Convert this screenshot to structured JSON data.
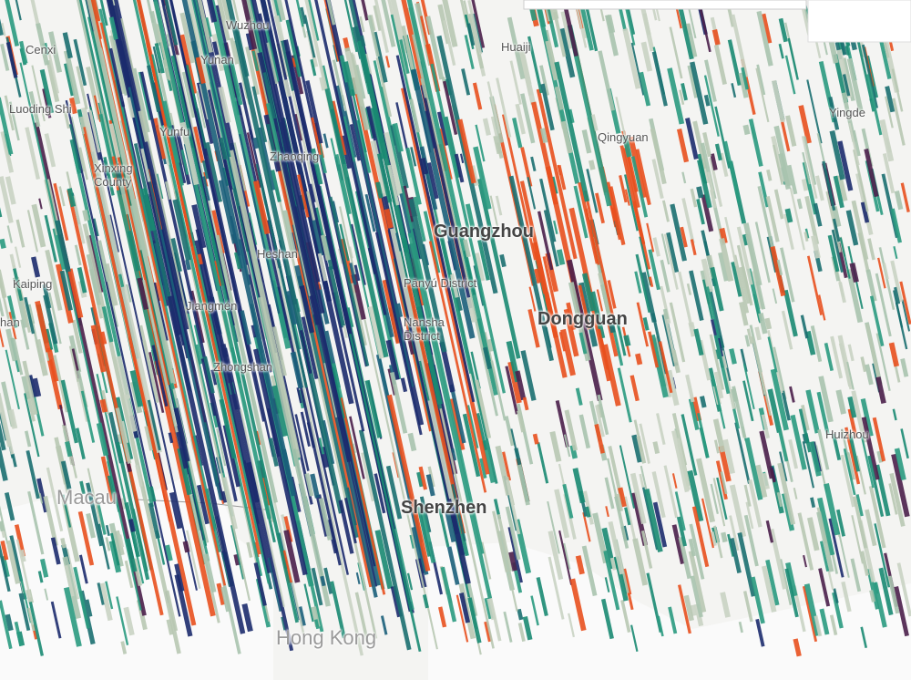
{
  "map": {
    "labels": [
      {
        "text": "Wuzhou"
      },
      {
        "text": "Cenxi"
      },
      {
        "text": "Yunan"
      },
      {
        "text": "Huaiji"
      },
      {
        "text": "Luoding Shi"
      },
      {
        "text": "Yunfu"
      },
      {
        "text": "Xinxing County"
      },
      {
        "text": "Zhaoqing"
      },
      {
        "text": "Qingyuan"
      },
      {
        "text": "Yingde"
      },
      {
        "text": "Guangzhou"
      },
      {
        "text": "Heshan"
      },
      {
        "text": "Kaiping"
      },
      {
        "text": "Pānyú District"
      },
      {
        "text": "Jiangmén"
      },
      {
        "text": "Nansha District"
      },
      {
        "text": "Dongguan"
      },
      {
        "text": "han"
      },
      {
        "text": "Zhongshan"
      },
      {
        "text": "Huizhou"
      },
      {
        "text": "Macau"
      },
      {
        "text": "Shenzhen"
      },
      {
        "text": "Hong Kong"
      }
    ]
  }
}
